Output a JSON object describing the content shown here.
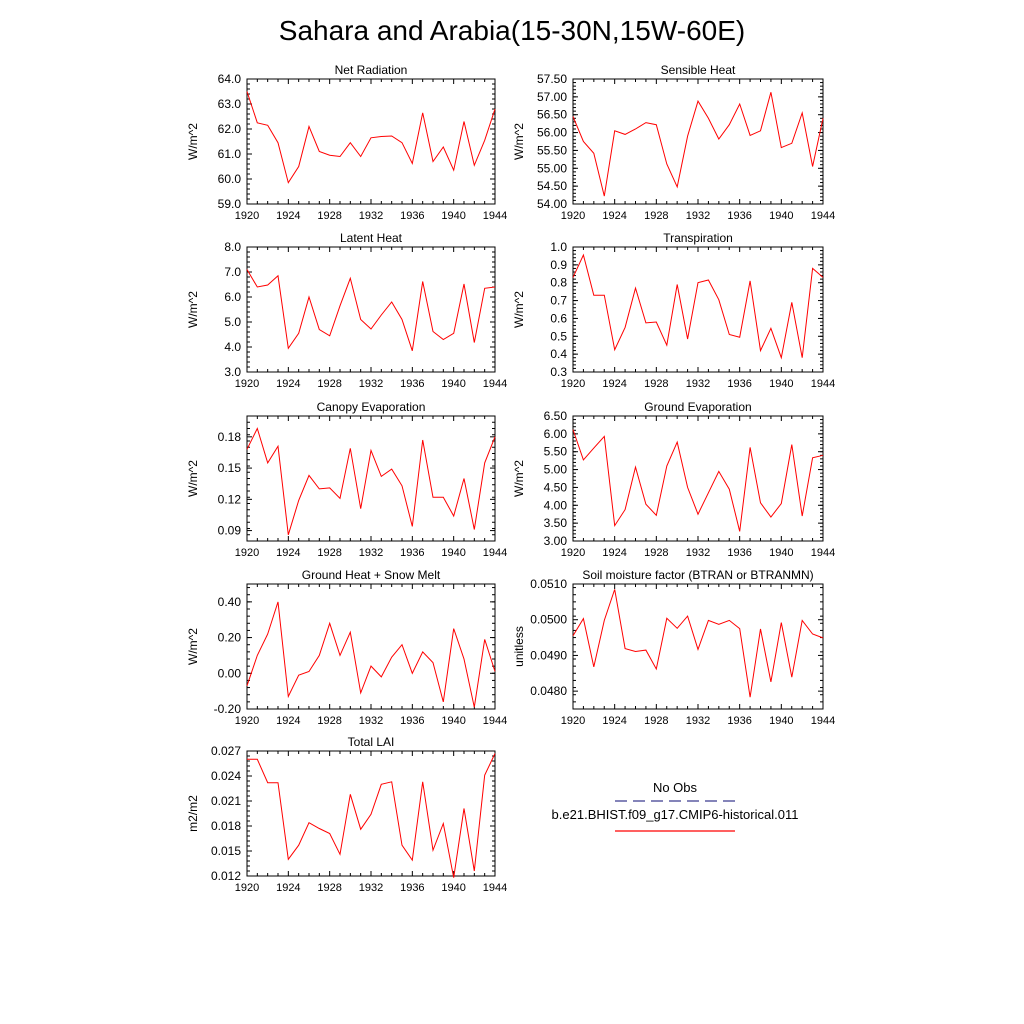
{
  "figure": {
    "title": "Sahara and Arabia(15-30N,15W-60E)"
  },
  "legend": {
    "obs_label": "No Obs",
    "model_label": "b.e21.BHIST.f09_g17.CMIP6-historical.011",
    "obs_color": "#3b3b8f",
    "model_color": "#ff0000"
  },
  "chart_data": [
    {
      "type": "line",
      "title": "Net Radiation",
      "ylabel": "W/m^2",
      "ylim": [
        59.0,
        64.0
      ],
      "yticks": [
        "59.0",
        "60.0",
        "61.0",
        "62.0",
        "63.0",
        "64.0"
      ],
      "xlim": [
        1920,
        1944
      ],
      "xticks": [
        "1920",
        "1924",
        "1928",
        "1932",
        "1936",
        "1940",
        "1944"
      ],
      "x": [
        1920,
        1921,
        1922,
        1923,
        1924,
        1925,
        1926,
        1927,
        1928,
        1929,
        1930,
        1931,
        1932,
        1933,
        1934,
        1935,
        1936,
        1937,
        1938,
        1939,
        1940,
        1941,
        1942,
        1943,
        1944
      ],
      "series": [
        {
          "color": "#ff0000",
          "values": [
            63.5,
            62.25,
            62.15,
            61.45,
            59.85,
            60.5,
            62.1,
            61.1,
            60.95,
            60.9,
            61.45,
            60.9,
            61.65,
            61.7,
            61.72,
            61.45,
            60.62,
            62.65,
            60.7,
            61.28,
            60.35,
            62.3,
            60.55,
            61.55,
            62.8
          ]
        }
      ]
    },
    {
      "type": "line",
      "title": "Sensible Heat",
      "ylabel": "W/m^2",
      "ylim": [
        54.0,
        57.5
      ],
      "yticks": [
        "54.00",
        "54.50",
        "55.00",
        "55.50",
        "56.00",
        "56.50",
        "57.00",
        "57.50"
      ],
      "xlim": [
        1920,
        1944
      ],
      "xticks": [
        "1920",
        "1924",
        "1928",
        "1932",
        "1936",
        "1940",
        "1944"
      ],
      "x": [
        1920,
        1921,
        1922,
        1923,
        1924,
        1925,
        1926,
        1927,
        1928,
        1929,
        1930,
        1931,
        1932,
        1933,
        1934,
        1935,
        1936,
        1937,
        1938,
        1939,
        1940,
        1941,
        1942,
        1943,
        1944
      ],
      "series": [
        {
          "color": "#ff0000",
          "values": [
            56.45,
            55.75,
            55.42,
            54.22,
            56.05,
            55.95,
            56.1,
            56.28,
            56.22,
            55.12,
            54.48,
            55.9,
            56.88,
            56.4,
            55.82,
            56.22,
            56.8,
            55.92,
            56.05,
            57.13,
            55.58,
            55.7,
            56.55,
            55.05,
            56.4
          ]
        }
      ]
    },
    {
      "type": "line",
      "title": "Latent Heat",
      "ylabel": "W/m^2",
      "ylim": [
        3.0,
        8.0
      ],
      "yticks": [
        "3.0",
        "4.0",
        "5.0",
        "6.0",
        "7.0",
        "8.0"
      ],
      "xlim": [
        1920,
        1944
      ],
      "xticks": [
        "1920",
        "1924",
        "1928",
        "1932",
        "1936",
        "1940",
        "1944"
      ],
      "x": [
        1920,
        1921,
        1922,
        1923,
        1924,
        1925,
        1926,
        1927,
        1928,
        1929,
        1930,
        1931,
        1932,
        1933,
        1934,
        1935,
        1936,
        1937,
        1938,
        1939,
        1940,
        1941,
        1942,
        1943,
        1944
      ],
      "series": [
        {
          "color": "#ff0000",
          "values": [
            7.1,
            6.4,
            6.48,
            6.85,
            3.95,
            4.55,
            6.0,
            4.7,
            4.45,
            5.65,
            6.75,
            5.1,
            4.72,
            5.28,
            5.8,
            5.1,
            3.85,
            6.62,
            4.62,
            4.3,
            4.55,
            6.52,
            4.18,
            6.35,
            6.4
          ]
        }
      ]
    },
    {
      "type": "line",
      "title": "Transpiration",
      "ylabel": "W/m^2",
      "ylim": [
        0.3,
        1.0
      ],
      "yticks": [
        "0.3",
        "0.4",
        "0.5",
        "0.6",
        "0.7",
        "0.8",
        "0.9",
        "1.0"
      ],
      "xlim": [
        1920,
        1944
      ],
      "xticks": [
        "1920",
        "1924",
        "1928",
        "1932",
        "1936",
        "1940",
        "1944"
      ],
      "x": [
        1920,
        1921,
        1922,
        1923,
        1924,
        1925,
        1926,
        1927,
        1928,
        1929,
        1930,
        1931,
        1932,
        1933,
        1934,
        1935,
        1936,
        1937,
        1938,
        1939,
        1940,
        1941,
        1942,
        1943,
        1944
      ],
      "series": [
        {
          "color": "#ff0000",
          "values": [
            0.83,
            0.955,
            0.73,
            0.73,
            0.425,
            0.55,
            0.77,
            0.575,
            0.58,
            0.45,
            0.79,
            0.485,
            0.8,
            0.815,
            0.705,
            0.51,
            0.495,
            0.81,
            0.42,
            0.545,
            0.38,
            0.69,
            0.38,
            0.88,
            0.83
          ]
        }
      ]
    },
    {
      "type": "line",
      "title": "Canopy Evaporation",
      "ylabel": "W/m^2",
      "ylim": [
        0.08,
        0.2
      ],
      "yticks": [
        "0.09",
        "0.12",
        "0.15",
        "0.18"
      ],
      "ytick_values": [
        0.09,
        0.12,
        0.15,
        0.18
      ],
      "xlim": [
        1920,
        1944
      ],
      "xticks": [
        "1920",
        "1924",
        "1928",
        "1932",
        "1936",
        "1940",
        "1944"
      ],
      "x": [
        1920,
        1921,
        1922,
        1923,
        1924,
        1925,
        1926,
        1927,
        1928,
        1929,
        1930,
        1931,
        1932,
        1933,
        1934,
        1935,
        1936,
        1937,
        1938,
        1939,
        1940,
        1941,
        1942,
        1943,
        1944
      ],
      "series": [
        {
          "color": "#ff0000",
          "values": [
            0.168,
            0.188,
            0.155,
            0.171,
            0.086,
            0.119,
            0.143,
            0.13,
            0.131,
            0.121,
            0.169,
            0.111,
            0.167,
            0.142,
            0.149,
            0.133,
            0.094,
            0.177,
            0.122,
            0.122,
            0.104,
            0.14,
            0.091,
            0.155,
            0.18
          ]
        }
      ]
    },
    {
      "type": "line",
      "title": "Ground Evaporation",
      "ylabel": "W/m^2",
      "ylim": [
        3.0,
        6.5
      ],
      "yticks": [
        "3.00",
        "3.50",
        "4.00",
        "4.50",
        "5.00",
        "5.50",
        "6.00",
        "6.50"
      ],
      "xlim": [
        1920,
        1944
      ],
      "xticks": [
        "1920",
        "1924",
        "1928",
        "1932",
        "1936",
        "1940",
        "1944"
      ],
      "x": [
        1920,
        1921,
        1922,
        1923,
        1924,
        1925,
        1926,
        1927,
        1928,
        1929,
        1930,
        1931,
        1932,
        1933,
        1934,
        1935,
        1936,
        1937,
        1938,
        1939,
        1940,
        1941,
        1942,
        1943,
        1944
      ],
      "series": [
        {
          "color": "#ff0000",
          "values": [
            6.12,
            5.27,
            5.6,
            5.93,
            3.43,
            3.88,
            5.07,
            4.03,
            3.72,
            5.1,
            5.77,
            4.5,
            3.75,
            4.35,
            4.95,
            4.45,
            3.27,
            5.62,
            4.07,
            3.67,
            4.05,
            5.7,
            3.7,
            5.33,
            5.4
          ]
        }
      ]
    },
    {
      "type": "line",
      "title": "Ground Heat + Snow Melt",
      "ylabel": "W/m^2",
      "ylim": [
        -0.2,
        0.5
      ],
      "yticks": [
        "-0.20",
        "0.00",
        "0.20",
        "0.40"
      ],
      "ytick_values": [
        -0.2,
        0.0,
        0.2,
        0.4
      ],
      "xlim": [
        1920,
        1944
      ],
      "xticks": [
        "1920",
        "1924",
        "1928",
        "1932",
        "1936",
        "1940",
        "1944"
      ],
      "x": [
        1920,
        1921,
        1922,
        1923,
        1924,
        1925,
        1926,
        1927,
        1928,
        1929,
        1930,
        1931,
        1932,
        1933,
        1934,
        1935,
        1936,
        1937,
        1938,
        1939,
        1940,
        1941,
        1942,
        1943,
        1944
      ],
      "series": [
        {
          "color": "#ff0000",
          "values": [
            -0.07,
            0.1,
            0.22,
            0.4,
            -0.13,
            -0.01,
            0.01,
            0.1,
            0.28,
            0.1,
            0.23,
            -0.11,
            0.04,
            -0.02,
            0.09,
            0.16,
            0.0,
            0.12,
            0.06,
            -0.16,
            0.25,
            0.08,
            -0.19,
            0.19,
            0.01
          ]
        }
      ]
    },
    {
      "type": "line",
      "title": "Soil moisture factor (BTRAN or BTRANMN)",
      "ylabel": "unitless",
      "ylim": [
        0.0475,
        0.051
      ],
      "yticks": [
        "0.0480",
        "0.0490",
        "0.0500",
        "0.0510"
      ],
      "ytick_values": [
        0.048,
        0.049,
        0.05,
        0.051
      ],
      "xlim": [
        1920,
        1944
      ],
      "xticks": [
        "1920",
        "1924",
        "1928",
        "1932",
        "1936",
        "1940",
        "1944"
      ],
      "x": [
        1920,
        1921,
        1922,
        1923,
        1924,
        1925,
        1926,
        1927,
        1928,
        1929,
        1930,
        1931,
        1932,
        1933,
        1934,
        1935,
        1936,
        1937,
        1938,
        1939,
        1940,
        1941,
        1942,
        1943,
        1944
      ],
      "series": [
        {
          "color": "#ff0000",
          "values": [
            0.04955,
            0.05003,
            0.04868,
            0.04998,
            0.05085,
            0.04919,
            0.04911,
            0.04915,
            0.04862,
            0.05004,
            0.04976,
            0.0501,
            0.04917,
            0.04998,
            0.04987,
            0.04998,
            0.04975,
            0.04783,
            0.04974,
            0.04826,
            0.04992,
            0.04839,
            0.04998,
            0.0496,
            0.04949
          ]
        }
      ]
    },
    {
      "type": "line",
      "title": "Total LAI",
      "ylabel": "m2/m2",
      "ylim": [
        0.012,
        0.027
      ],
      "yticks": [
        "0.012",
        "0.015",
        "0.018",
        "0.021",
        "0.024",
        "0.027"
      ],
      "ytick_values": [
        0.012,
        0.015,
        0.018,
        0.021,
        0.024,
        0.027
      ],
      "xlim": [
        1920,
        1944
      ],
      "xticks": [
        "1920",
        "1924",
        "1928",
        "1932",
        "1936",
        "1940",
        "1944"
      ],
      "x": [
        1920,
        1921,
        1922,
        1923,
        1924,
        1925,
        1926,
        1927,
        1928,
        1929,
        1930,
        1931,
        1932,
        1933,
        1934,
        1935,
        1936,
        1937,
        1938,
        1939,
        1940,
        1941,
        1942,
        1943,
        1944
      ],
      "series": [
        {
          "color": "#ff0000",
          "values": [
            0.026,
            0.026,
            0.0232,
            0.0232,
            0.014,
            0.0157,
            0.0184,
            0.0177,
            0.0171,
            0.0146,
            0.0218,
            0.0176,
            0.0194,
            0.023,
            0.0233,
            0.0157,
            0.0139,
            0.0233,
            0.0151,
            0.0183,
            0.0118,
            0.0201,
            0.0126,
            0.0241,
            0.0267
          ]
        }
      ]
    }
  ]
}
